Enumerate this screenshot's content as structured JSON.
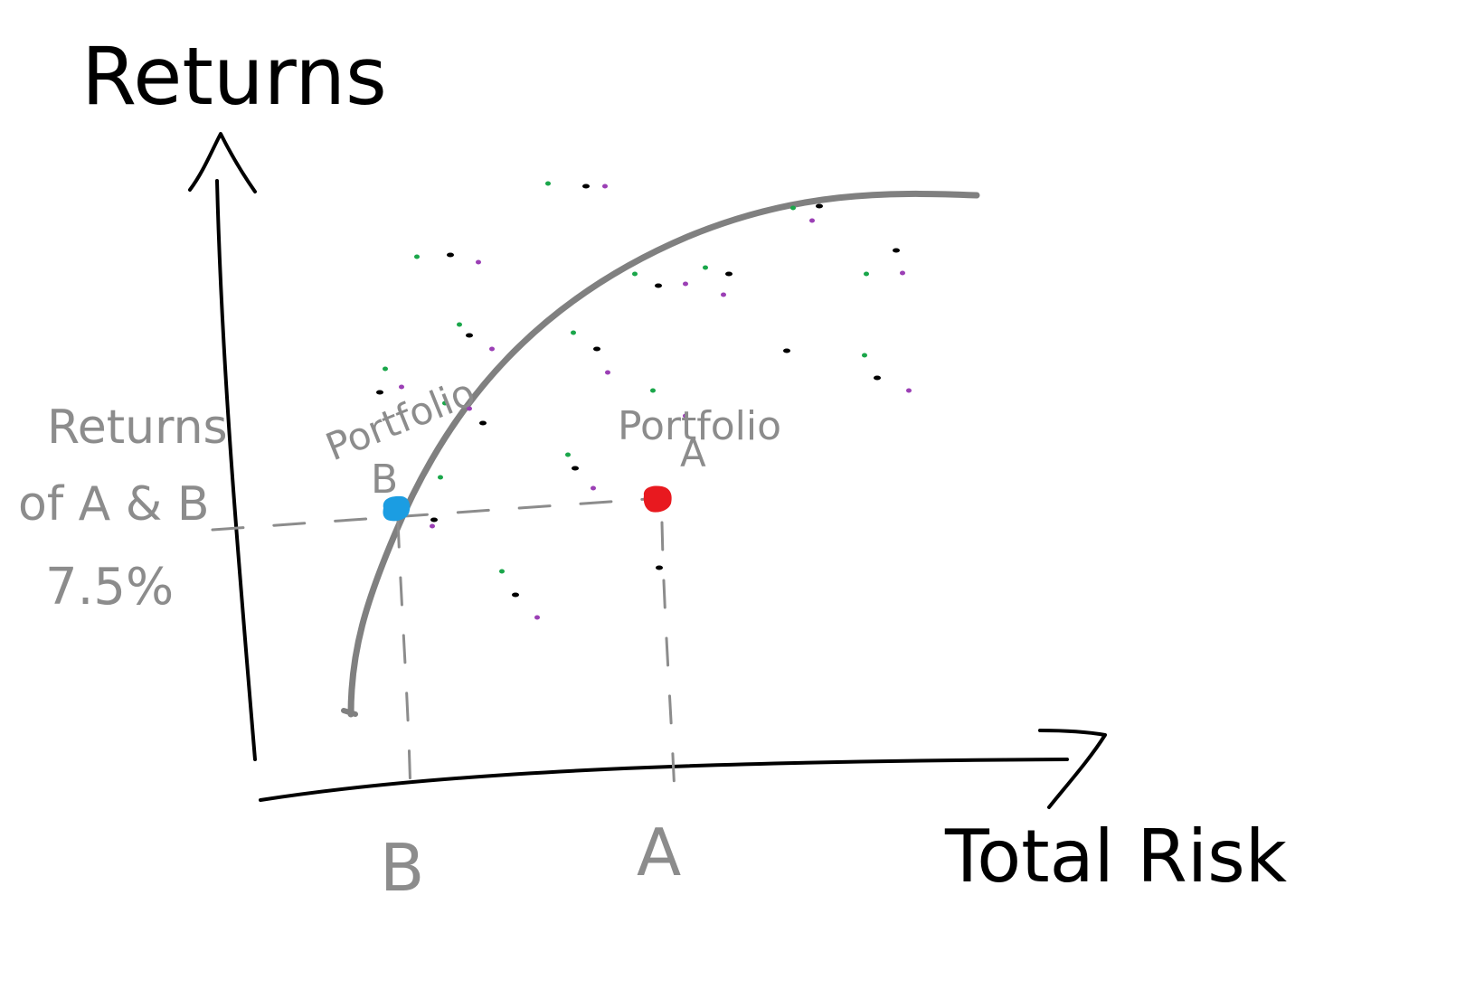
{
  "labels": {
    "y_axis": "Returns",
    "x_axis": "Total Risk",
    "portfolio_b": [
      "Portfolio",
      "B"
    ],
    "portfolio_a": [
      "Portfolio",
      "A"
    ],
    "tick_b": "B",
    "tick_a": "A",
    "returns_note": [
      "Returns",
      "of A & B",
      "7.5%"
    ]
  },
  "colors": {
    "ink": "#000000",
    "frontier": "#808080",
    "annotation": "#8c8c8c",
    "portfolio_a": "#e8191f",
    "portfolio_b": "#1b9de2",
    "dot_green": "#1aa64a",
    "dot_purple": "#9b3fb5",
    "dot_black": "#000000"
  }
}
